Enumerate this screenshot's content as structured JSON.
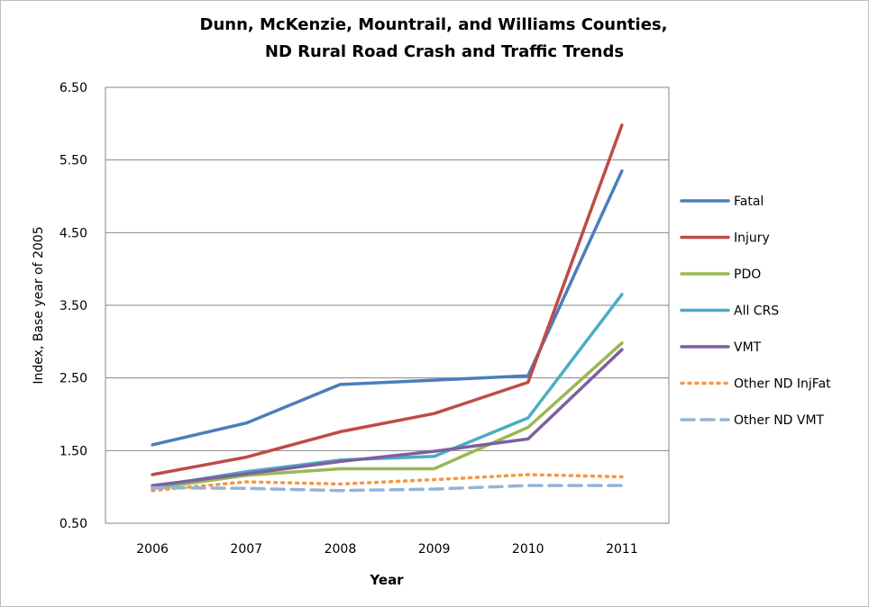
{
  "chart_data": {
    "type": "line",
    "title_line1": "Dunn, McKenzie, Mountrail, and Williams Counties,",
    "title_line2": "ND Rural Road Crash and Traffic Trends",
    "xlabel": "Year",
    "ylabel": "Index, Base year of 2005",
    "categories": [
      "2006",
      "2007",
      "2008",
      "2009",
      "2010",
      "2011"
    ],
    "yticks": [
      "6.50",
      "5.50",
      "4.50",
      "3.50",
      "2.50",
      "1.50",
      "0.50"
    ],
    "ylim": [
      0.5,
      6.5
    ],
    "grid": true,
    "legend_position": "right",
    "series": [
      {
        "name": "Fatal",
        "color": "#4a7ebb",
        "style": "solid",
        "values": [
          1.58,
          1.88,
          2.41,
          2.47,
          2.53,
          5.35
        ]
      },
      {
        "name": "Injury",
        "color": "#be4b48",
        "style": "solid",
        "values": [
          1.17,
          1.41,
          1.76,
          2.01,
          2.44,
          5.98
        ]
      },
      {
        "name": "PDO",
        "color": "#98b954",
        "style": "solid",
        "values": [
          0.98,
          1.16,
          1.25,
          1.25,
          1.82,
          2.98
        ]
      },
      {
        "name": "All CRS",
        "color": "#4bacc6",
        "style": "solid",
        "values": [
          1.0,
          1.21,
          1.37,
          1.42,
          1.95,
          3.65
        ]
      },
      {
        "name": "VMT",
        "color": "#7d60a0",
        "style": "solid",
        "values": [
          1.02,
          1.18,
          1.35,
          1.49,
          1.66,
          2.89
        ]
      },
      {
        "name": "Other ND InjFat",
        "color": "#f79646",
        "style": "dotted",
        "values": [
          0.95,
          1.07,
          1.04,
          1.1,
          1.17,
          1.14
        ]
      },
      {
        "name": "Other ND VMT",
        "color": "#95b3d7",
        "style": "dashed",
        "values": [
          0.99,
          0.98,
          0.95,
          0.97,
          1.02,
          1.02
        ]
      }
    ]
  }
}
